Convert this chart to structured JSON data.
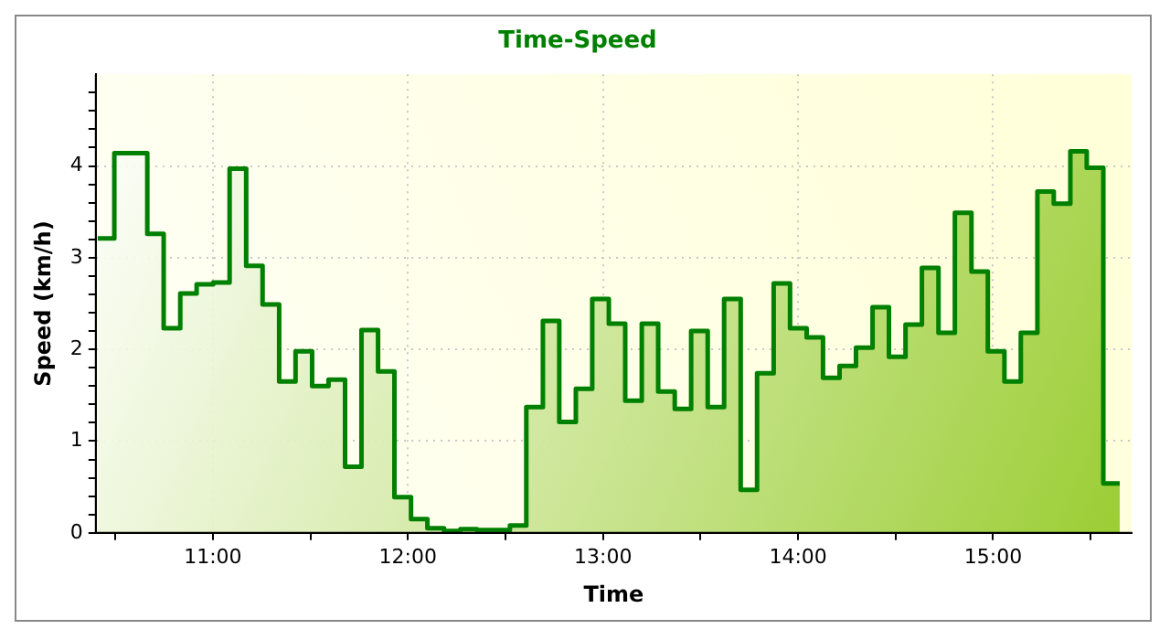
{
  "chart_data": {
    "type": "area",
    "title": "Time-Speed",
    "xlabel": "Time",
    "ylabel": "Speed (km/h)",
    "x": [
      10.41,
      10.495,
      10.495,
      10.579,
      10.579,
      10.664,
      10.664,
      10.748,
      10.748,
      10.833,
      10.833,
      10.917,
      10.917,
      11.002,
      11.002,
      11.086,
      11.086,
      11.171,
      11.171,
      11.255,
      11.255,
      11.34,
      11.34,
      11.424,
      11.424,
      11.509,
      11.509,
      11.593,
      11.593,
      11.678,
      11.678,
      11.762,
      11.762,
      11.847,
      11.847,
      11.931,
      11.931,
      12.016,
      12.016,
      12.1,
      12.1,
      12.185,
      12.185,
      12.269,
      12.269,
      12.354,
      12.354,
      12.438,
      12.438,
      12.523,
      12.523,
      12.607,
      12.607,
      12.692,
      12.692,
      12.776,
      12.776,
      12.861,
      12.861,
      12.945,
      12.945,
      13.03,
      13.03,
      13.114,
      13.114,
      13.199,
      13.199,
      13.283,
      13.283,
      13.368,
      13.368,
      13.452,
      13.452,
      13.537,
      13.537,
      13.621,
      13.621,
      13.706,
      13.706,
      13.79,
      13.79,
      13.875,
      13.875,
      13.959,
      13.959,
      14.044,
      14.044,
      14.128,
      14.128,
      14.213,
      14.213,
      14.297,
      14.297,
      14.382,
      14.382,
      14.466,
      14.466,
      14.551,
      14.551,
      14.635,
      14.635,
      14.72,
      14.72,
      14.804,
      14.804,
      14.889,
      14.889,
      14.973,
      14.973,
      15.058,
      15.058,
      15.142,
      15.142,
      15.227,
      15.227,
      15.311,
      15.311,
      15.396,
      15.396,
      15.48,
      15.48,
      15.565,
      15.565,
      15.649
    ],
    "series": [
      {
        "color": "#008000",
        "values": [
          3.21,
          3.21,
          4.14,
          4.14,
          4.14,
          4.14,
          3.26,
          3.26,
          2.23,
          2.23,
          2.61,
          2.61,
          2.71,
          2.71,
          2.73,
          2.73,
          3.97,
          3.97,
          2.91,
          2.91,
          2.49,
          2.49,
          1.65,
          1.65,
          1.98,
          1.98,
          1.6,
          1.6,
          1.67,
          1.67,
          0.72,
          0.72,
          2.21,
          2.21,
          1.76,
          1.76,
          0.39,
          0.39,
          0.15,
          0.15,
          0.05,
          0.05,
          0.02,
          0.02,
          0.04,
          0.04,
          0.03,
          0.03,
          0.03,
          0.03,
          0.08,
          0.08,
          1.37,
          1.37,
          2.31,
          2.31,
          1.21,
          1.21,
          1.57,
          1.57,
          2.55,
          2.55,
          2.28,
          2.28,
          1.44,
          1.44,
          2.28,
          2.28,
          1.54,
          1.54,
          1.35,
          1.35,
          2.2,
          2.2,
          1.37,
          1.37,
          2.55,
          2.55,
          0.47,
          0.47,
          1.74,
          1.74,
          2.72,
          2.72,
          2.23,
          2.23,
          2.13,
          2.13,
          1.69,
          1.69,
          1.82,
          1.82,
          2.02,
          2.02,
          2.46,
          2.46,
          1.92,
          1.92,
          2.27,
          2.27,
          2.89,
          2.89,
          2.18,
          2.18,
          3.49,
          3.49,
          2.85,
          2.85,
          1.98,
          1.98,
          1.65,
          1.65,
          2.18,
          2.18,
          3.72,
          3.72,
          3.59,
          3.59,
          4.16,
          4.16,
          3.98,
          3.98,
          0.54,
          0.54
        ]
      }
    ],
    "xlim": [
      10.4,
      15.71
    ],
    "xticks": [
      {
        "value": 10.5,
        "label": null
      },
      {
        "value": 11,
        "label": "11:00"
      },
      {
        "value": 11.5,
        "label": null
      },
      {
        "value": 12,
        "label": "12:00"
      },
      {
        "value": 12.5,
        "label": null
      },
      {
        "value": 13,
        "label": "13:00"
      },
      {
        "value": 13.5,
        "label": null
      },
      {
        "value": 14,
        "label": "14:00"
      },
      {
        "value": 14.5,
        "label": null
      },
      {
        "value": 15,
        "label": "15:00"
      },
      {
        "value": 15.5,
        "label": null
      }
    ],
    "ylim": [
      0,
      5
    ],
    "yticks": [
      0,
      {
        "value": 0.2,
        "label": null
      },
      {
        "value": 0.4,
        "label": null
      },
      {
        "value": 0.6,
        "label": null
      },
      {
        "value": 0.8,
        "label": null
      },
      1,
      {
        "value": 1.2,
        "label": null
      },
      {
        "value": 1.4,
        "label": null
      },
      {
        "value": 1.6,
        "label": null
      },
      {
        "value": 1.8,
        "label": null
      },
      2,
      {
        "value": 2.2,
        "label": null
      },
      {
        "value": 2.4,
        "label": null
      },
      {
        "value": 2.6,
        "label": null
      },
      {
        "value": 2.8,
        "label": null
      },
      3,
      {
        "value": 3.2,
        "label": null
      },
      {
        "value": 3.4,
        "label": null
      },
      {
        "value": 3.6,
        "label": null
      },
      {
        "value": 3.8,
        "label": null
      },
      4,
      {
        "value": 4.2,
        "label": null
      },
      {
        "value": 4.4,
        "label": null
      },
      {
        "value": 4.6,
        "label": null
      },
      {
        "value": 4.8,
        "label": null
      }
    ],
    "grid": true,
    "legend": false
  }
}
